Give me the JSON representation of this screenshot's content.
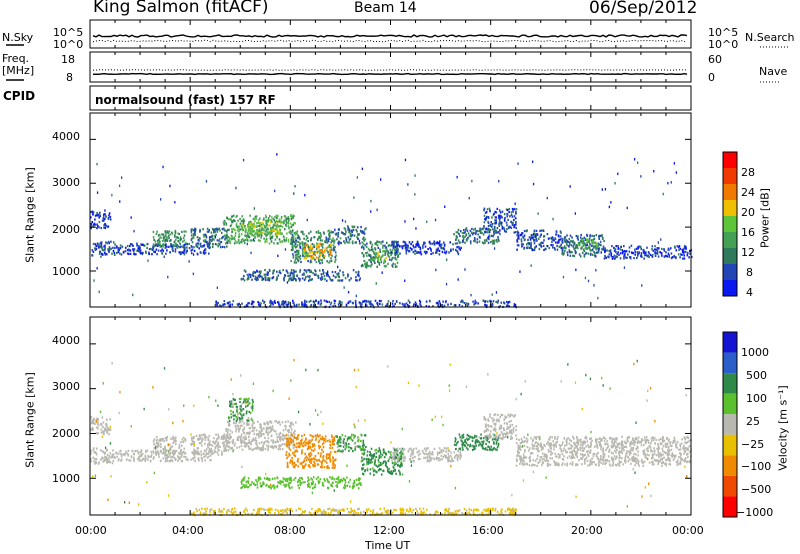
{
  "header": {
    "station": "King Salmon (fitACF)",
    "beam": "Beam 14",
    "date": "06/Sep/2012"
  },
  "top_panels": {
    "nsky_label": "N.Sky",
    "freq_label_1": "Freq.",
    "freq_label_2": "[MHz]",
    "cpid_label": "CPID",
    "nsearch_label": "N.Search",
    "nave_label": "Nave",
    "noise_ticks_left": [
      "10^5",
      "10^0"
    ],
    "noise_ticks_right": [
      "10^5",
      "10^0"
    ],
    "freq_ticks": [
      "18",
      "8"
    ],
    "nave_ticks": [
      "60",
      "0"
    ],
    "cpid_value": "normalsound (fast) 157 RF"
  },
  "colors": {
    "power": [
      "#0a19f0",
      "#2246b4",
      "#2f7a5a",
      "#44a054",
      "#5ec43a",
      "#f0c000",
      "#f07a00",
      "#f03a00",
      "#ff0000"
    ],
    "velocity": [
      "#1414d2",
      "#2a5ec8",
      "#2f8a4a",
      "#5ac02e",
      "#b8b8b0",
      "#e8c000",
      "#f08a00",
      "#f04a00",
      "#ff0000"
    ]
  },
  "chart_data": [
    {
      "type": "heatmap",
      "title": "",
      "xlabel": "",
      "ylabel": "Slant Range [km]",
      "colorbar_label": "Power [dB]",
      "colorbar_ticks": [
        "28",
        "24",
        "20",
        "16",
        "12",
        "8",
        "4"
      ],
      "x_ticks": [
        "00:00",
        "04:00",
        "08:00",
        "12:00",
        "16:00",
        "20:00",
        "00:00"
      ],
      "y_ticks": [
        "4000",
        "3000",
        "2000",
        "1000"
      ],
      "xlim_hours": [
        0,
        24
      ],
      "ylim_km": [
        180,
        4600
      ],
      "regions": [
        {
          "t0": 0.0,
          "t1": 1.0,
          "r0": 1350,
          "r1": 1700,
          "value": 6
        },
        {
          "t0": 0.0,
          "t1": 0.8,
          "r0": 2000,
          "r1": 2400,
          "value": 5
        },
        {
          "t0": 1.0,
          "t1": 4.8,
          "r0": 1400,
          "r1": 1650,
          "value": 5
        },
        {
          "t0": 2.5,
          "t1": 3.8,
          "r0": 1550,
          "r1": 1950,
          "value": 12
        },
        {
          "t0": 4.0,
          "t1": 5.5,
          "r0": 1550,
          "r1": 2000,
          "value": 9
        },
        {
          "t0": 5.3,
          "t1": 8.2,
          "r0": 1650,
          "r1": 2300,
          "value": 14
        },
        {
          "t0": 6.0,
          "t1": 7.6,
          "r0": 1850,
          "r1": 2150,
          "value": 19
        },
        {
          "t0": 8.0,
          "t1": 9.8,
          "r0": 1200,
          "r1": 1950,
          "value": 11
        },
        {
          "t0": 8.5,
          "t1": 9.6,
          "r0": 1300,
          "r1": 1650,
          "value": 23
        },
        {
          "t0": 9.8,
          "t1": 11.0,
          "r0": 1650,
          "r1": 2050,
          "value": 9
        },
        {
          "t0": 10.8,
          "t1": 12.3,
          "r0": 1100,
          "r1": 1700,
          "value": 11
        },
        {
          "t0": 11.3,
          "t1": 11.8,
          "r0": 1250,
          "r1": 1500,
          "value": 18
        },
        {
          "t0": 12.0,
          "t1": 14.8,
          "r0": 1400,
          "r1": 1700,
          "value": 5
        },
        {
          "t0": 6.0,
          "t1": 10.8,
          "r0": 800,
          "r1": 1050,
          "value": 7
        },
        {
          "t0": 14.5,
          "t1": 16.3,
          "r0": 1650,
          "r1": 2000,
          "value": 9
        },
        {
          "t0": 15.7,
          "t1": 17.0,
          "r0": 1900,
          "r1": 2450,
          "value": 6
        },
        {
          "t0": 17.0,
          "t1": 18.8,
          "r0": 1500,
          "r1": 1950,
          "value": 6
        },
        {
          "t0": 18.8,
          "t1": 20.5,
          "r0": 1350,
          "r1": 1850,
          "value": 8
        },
        {
          "t0": 19.3,
          "t1": 20.3,
          "r0": 1500,
          "r1": 1750,
          "value": 14
        },
        {
          "t0": 20.5,
          "t1": 24.0,
          "r0": 1300,
          "r1": 1600,
          "value": 5
        },
        {
          "t0": 5.0,
          "t1": 17.0,
          "r0": 200,
          "r1": 350,
          "value": 5
        }
      ]
    },
    {
      "type": "heatmap",
      "title": "",
      "xlabel": "Time UT",
      "ylabel": "Slant Range [km]",
      "colorbar_label": "Velocity [m s⁻¹]",
      "colorbar_ticks": [
        "1000",
        "500",
        "100",
        "25",
        "−25",
        "−100",
        "−500",
        "−1000"
      ],
      "x_ticks": [
        "00:00",
        "04:00",
        "08:00",
        "12:00",
        "16:00",
        "20:00",
        "00:00"
      ],
      "y_ticks": [
        "4000",
        "3000",
        "2000",
        "1000"
      ],
      "xlim_hours": [
        0,
        24
      ],
      "ylim_km": [
        180,
        4600
      ],
      "regions": [
        {
          "t0": 0.0,
          "t1": 1.0,
          "r0": 1350,
          "r1": 1700,
          "value": 0
        },
        {
          "t0": 0.0,
          "t1": 0.8,
          "r0": 2000,
          "r1": 2400,
          "value": 0
        },
        {
          "t0": 1.0,
          "t1": 4.8,
          "r0": 1400,
          "r1": 1650,
          "value": 0
        },
        {
          "t0": 2.5,
          "t1": 3.8,
          "r0": 1550,
          "r1": 1950,
          "value": 0
        },
        {
          "t0": 4.0,
          "t1": 5.5,
          "r0": 1550,
          "r1": 2000,
          "value": 0
        },
        {
          "t0": 5.3,
          "t1": 8.2,
          "r0": 1650,
          "r1": 2300,
          "value": 0
        },
        {
          "t0": 5.5,
          "t1": 6.5,
          "r0": 2300,
          "r1": 2800,
          "value": 150
        },
        {
          "t0": 7.8,
          "t1": 9.8,
          "r0": 1250,
          "r1": 2000,
          "value": -300
        },
        {
          "t0": 9.8,
          "t1": 11.0,
          "r0": 1600,
          "r1": 2000,
          "value": 150
        },
        {
          "t0": 10.8,
          "t1": 12.5,
          "r0": 1100,
          "r1": 1700,
          "value": 200
        },
        {
          "t0": 12.0,
          "t1": 14.8,
          "r0": 1400,
          "r1": 1700,
          "value": 0
        },
        {
          "t0": 6.0,
          "t1": 10.8,
          "r0": 800,
          "r1": 1050,
          "value": 80
        },
        {
          "t0": 14.5,
          "t1": 16.3,
          "r0": 1650,
          "r1": 2000,
          "value": 300
        },
        {
          "t0": 15.7,
          "t1": 17.0,
          "r0": 1900,
          "r1": 2450,
          "value": 0
        },
        {
          "t0": 17.0,
          "t1": 24.0,
          "r0": 1300,
          "r1": 1950,
          "value": 0
        },
        {
          "t0": 4.0,
          "t1": 17.0,
          "r0": 200,
          "r1": 350,
          "value": -40
        }
      ]
    }
  ]
}
